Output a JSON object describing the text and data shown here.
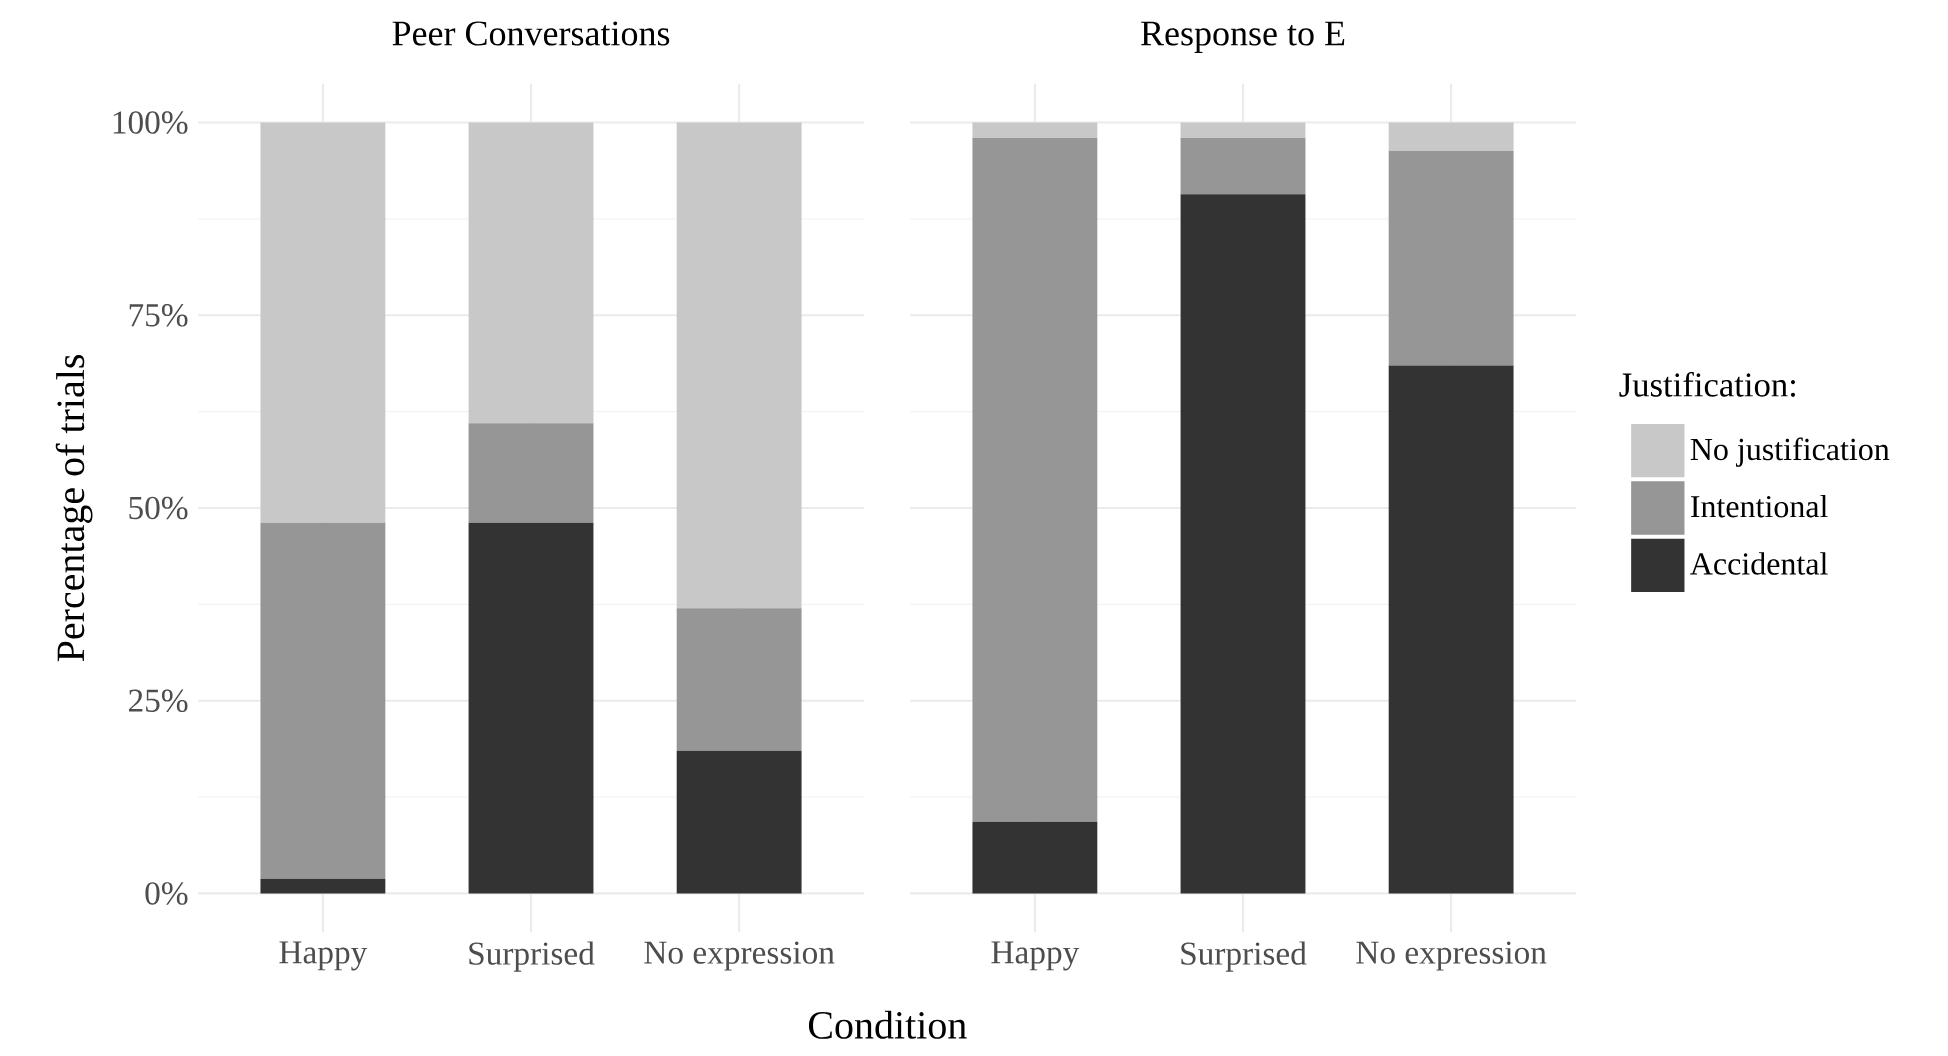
{
  "chart_data": [
    {
      "type": "bar",
      "stacked": true,
      "title": "Peer Conversations",
      "xlabel": "Condition",
      "ylabel": "Percentage of trials",
      "categories": [
        "Happy",
        "Surprised",
        "No expression"
      ],
      "ylim": [
        0,
        100
      ],
      "yticks": [
        {
          "value": 0,
          "label": "0%"
        },
        {
          "value": 25,
          "label": "25%"
        },
        {
          "value": 50,
          "label": "50%"
        },
        {
          "value": 75,
          "label": "75%"
        },
        {
          "value": 100,
          "label": "100%"
        }
      ],
      "grid": true,
      "legend": false,
      "series": [
        {
          "color": "#333333",
          "values": [
            1.9,
            48.1,
            18.5
          ]
        },
        {
          "color": "#969696",
          "values": [
            46.2,
            12.9,
            18.5
          ]
        },
        {
          "color": "#c8c8c8",
          "values": [
            51.9,
            39.0,
            63.0
          ]
        }
      ]
    },
    {
      "type": "bar",
      "stacked": true,
      "title": "Response to E",
      "categories": [
        "Happy",
        "Surprised",
        "No expression"
      ],
      "ylim": [
        0,
        100
      ],
      "yticks": [
        {
          "value": 0,
          "label": null
        },
        {
          "value": 25,
          "label": null
        },
        {
          "value": 50,
          "label": null
        },
        {
          "value": 75,
          "label": null
        },
        {
          "value": 100,
          "label": null
        }
      ],
      "grid": true,
      "tick_labels": "x",
      "legend": "right",
      "legend_title": "Justification:",
      "series": [
        {
          "name": "Accidental",
          "color": "#333333",
          "values": [
            9.3,
            90.7,
            68.5
          ]
        },
        {
          "name": "Intentional",
          "color": "#969696",
          "values": [
            88.7,
            7.3,
            27.8
          ]
        },
        {
          "name": "No justification",
          "color": "#c8c8c8",
          "values": [
            2.0,
            2.0,
            3.7
          ]
        }
      ]
    }
  ]
}
